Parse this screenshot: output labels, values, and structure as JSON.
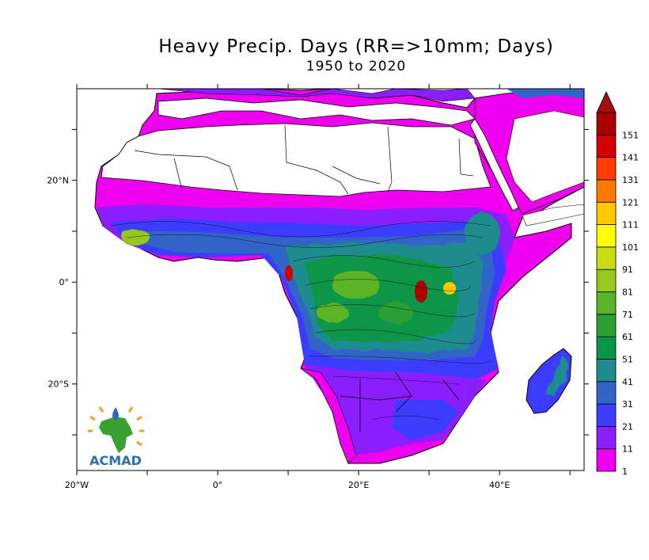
{
  "title": "Heavy Precip. Days (RR=>10mm; Days)",
  "subtitle": "1950 to 2020",
  "axes": {
    "x_ticks": [
      {
        "label": "20°W",
        "lon": -20
      },
      {
        "label": "0°",
        "lon": 0
      },
      {
        "label": "20°E",
        "lon": 20
      },
      {
        "label": "40°E",
        "lon": 40
      }
    ],
    "y_ticks": [
      {
        "label": "20°N",
        "lat": 20
      },
      {
        "label": "0°",
        "lat": 0
      },
      {
        "label": "20°S",
        "lat": -20
      }
    ],
    "lon_range": [
      -20,
      52
    ],
    "lat_range": [
      -37,
      38
    ]
  },
  "colorbar": {
    "levels": [
      "1",
      "11",
      "21",
      "31",
      "41",
      "51",
      "61",
      "71",
      "81",
      "91",
      "101",
      "111",
      "121",
      "131",
      "141",
      "151"
    ],
    "colors": [
      "#ee00ee",
      "#8a1eff",
      "#3c3cff",
      "#3264c8",
      "#1e8c8c",
      "#0a9646",
      "#2ca032",
      "#5ab428",
      "#96c81e",
      "#c8dc14",
      "#ffff00",
      "#ffc800",
      "#ff7800",
      "#ff3c00",
      "#d20000",
      "#aa0000"
    ],
    "extend_color": "#a01010"
  },
  "logo": {
    "text": "ACMAD"
  }
}
